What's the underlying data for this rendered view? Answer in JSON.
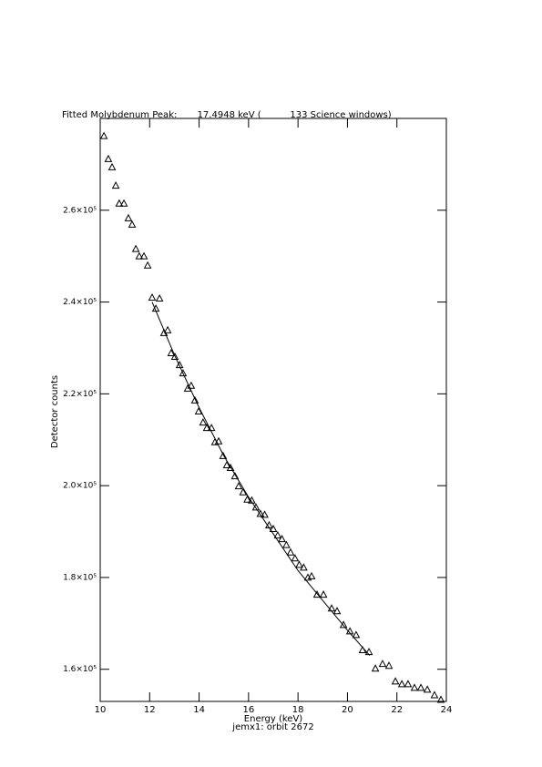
{
  "chart_data": {
    "type": "scatter",
    "title": "Fitted Molybdenum Peak:       17.4948 keV (          133 Science windows)",
    "x_label": "Energy (keV)",
    "subtitle": "jemx1: orbit 2672",
    "y_label": "Detector counts",
    "xlim": [
      10,
      24
    ],
    "xticks": [
      10,
      12,
      14,
      16,
      18,
      20,
      22,
      24
    ],
    "ylim": [
      153000,
      280000
    ],
    "yticks": [
      {
        "value": 160000,
        "label": "1.6×10⁵"
      },
      {
        "value": 180000,
        "label": "1.8×10⁵"
      },
      {
        "value": 200000,
        "label": "2.0×10⁵"
      },
      {
        "value": 220000,
        "label": "2.2×10⁵"
      },
      {
        "value": 240000,
        "label": "2.4×10⁵"
      },
      {
        "value": 260000,
        "label": "2.6×10⁵"
      }
    ],
    "series": [
      {
        "style": "triangle",
        "color": "#000000",
        "x": [
          10.15,
          10.33,
          10.48,
          10.63,
          10.77,
          10.96,
          11.14,
          11.29,
          11.44,
          11.58,
          11.77,
          11.92,
          12.1,
          12.25,
          12.4,
          12.58,
          12.73,
          12.87,
          13.02,
          13.21,
          13.35,
          13.54,
          13.68,
          13.83,
          13.98,
          14.16,
          14.31,
          14.5,
          14.64,
          14.79,
          14.97,
          15.12,
          15.27,
          15.45,
          15.6,
          15.78,
          15.95,
          16.13,
          16.3,
          16.48,
          16.65,
          16.83,
          17.0,
          17.18,
          17.35,
          17.53,
          17.7,
          17.88,
          18.05,
          18.23,
          18.4,
          18.55,
          18.77,
          19.03,
          19.36,
          19.58,
          19.84,
          20.1,
          20.35,
          20.61,
          20.87,
          21.13,
          21.42,
          21.68,
          21.94,
          22.2,
          22.45,
          22.71,
          22.97,
          23.23,
          23.52,
          23.78
        ],
        "values": [
          276200,
          271200,
          269400,
          265400,
          261500,
          261500,
          258300,
          256900,
          251600,
          250000,
          250000,
          248000,
          241000,
          238600,
          240800,
          233300,
          233900,
          228900,
          228100,
          226300,
          224500,
          221200,
          221800,
          218600,
          216200,
          213800,
          212600,
          212600,
          209500,
          209700,
          206500,
          204500,
          203900,
          202100,
          199900,
          198600,
          197000,
          196800,
          195300,
          193900,
          193700,
          191400,
          190600,
          189200,
          188400,
          187100,
          185500,
          184200,
          182800,
          182200,
          180000,
          180300,
          176300,
          176300,
          173300,
          172700,
          169700,
          168300,
          167500,
          164200,
          163800,
          160200,
          161200,
          160800,
          157400,
          156800,
          156800,
          156000,
          156000,
          155600,
          154400,
          153400
        ]
      },
      {
        "style": "line",
        "color": "#000000",
        "x": [
          12.1,
          13,
          14,
          15,
          16,
          17,
          18,
          19,
          20,
          20.9
        ],
        "values": [
          240000,
          228500,
          217000,
          206500,
          197500,
          189500,
          181500,
          175000,
          168500,
          163000
        ]
      }
    ]
  }
}
